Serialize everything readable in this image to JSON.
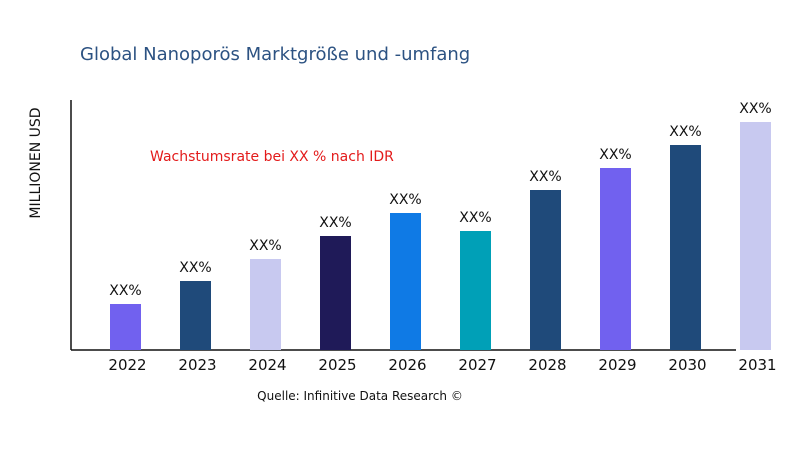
{
  "chart_data": {
    "type": "bar",
    "title": "Global Nanoporös Marktgröße und -umfang",
    "ylabel": "MILLIONEN USD",
    "xlabel": "",
    "annotation": "Wachstumsrate bei XX % nach IDR",
    "source": "Quelle: Infinitive Data Research ©",
    "categories": [
      "2022",
      "2023",
      "2024",
      "2025",
      "2026",
      "2027",
      "2028",
      "2029",
      "2030",
      "2031"
    ],
    "values": [
      46,
      69,
      91,
      114,
      137,
      119,
      160,
      182,
      205,
      228
    ],
    "data_labels": [
      "XX%",
      "XX%",
      "XX%",
      "XX%",
      "XX%",
      "XX%",
      "XX%",
      "XX%",
      "XX%",
      "XX%"
    ],
    "colors": [
      "#7161ef",
      "#1f4a7a",
      "#c8c9f0",
      "#1f1a58",
      "#0f7ae5",
      "#00a0b7",
      "#1f4a7a",
      "#7161ef",
      "#1f4a7a",
      "#c8c9f0"
    ],
    "ylim": [
      0,
      250
    ],
    "grid": false,
    "title_color": "#2c5282",
    "annotation_color": "#e31b1b"
  }
}
